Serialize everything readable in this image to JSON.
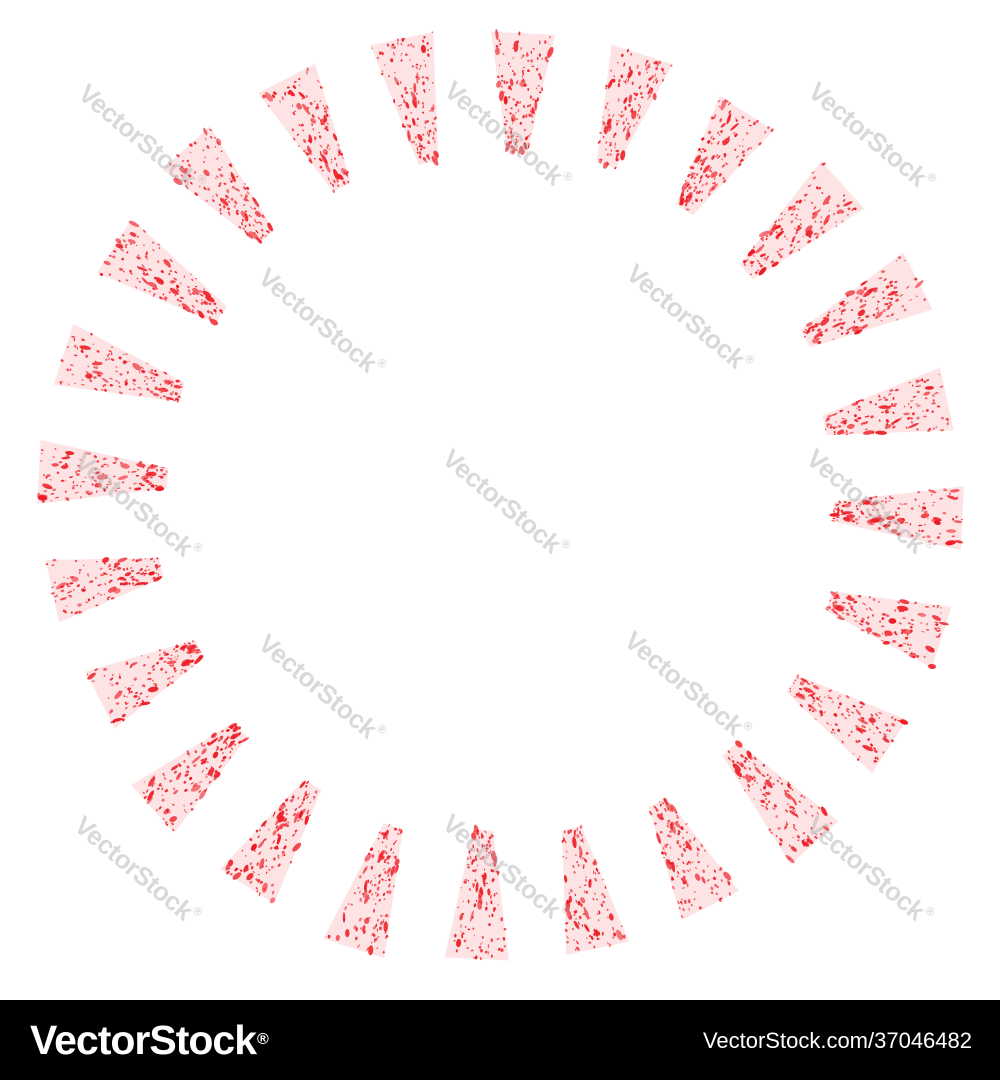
{
  "artwork": {
    "stroke_count": 24,
    "stroke_color": "#ed1c24",
    "background_color": "#ffffff",
    "icon": "grunge-sunburst-frame"
  },
  "watermark": {
    "brand": "VectorStock",
    "reg_mark": "®",
    "color": "#aaaaaa"
  },
  "footer": {
    "brand": "VectorStock",
    "reg_mark": "®",
    "image_id_label": "VectorStock.com/37046482",
    "background_color": "#000000",
    "text_color": "#ffffff"
  }
}
